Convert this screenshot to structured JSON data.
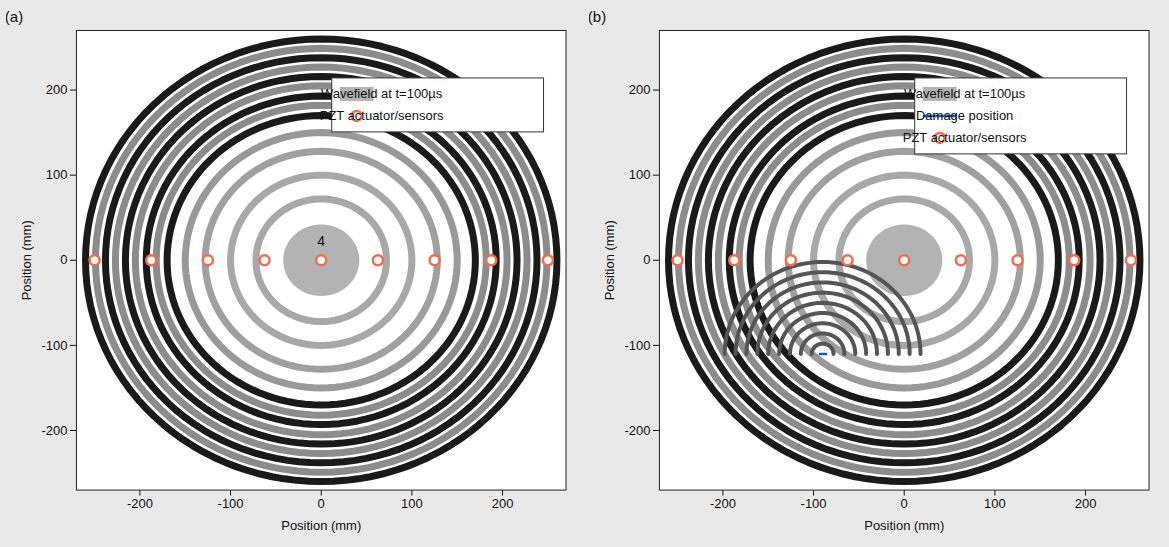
{
  "chart_data": [
    {
      "type": "scatter",
      "panel": "(a)",
      "xlabel": "Position (mm)",
      "ylabel": "Position (mm)",
      "xlim": [
        -270,
        270
      ],
      "ylim": [
        -270,
        270
      ],
      "xticks": [
        -200,
        -100,
        0,
        100,
        200
      ],
      "yticks": [
        -200,
        -100,
        0,
        100,
        200
      ],
      "legend": "top-right",
      "wavefield": {
        "name": "Wavefield at t=100µs",
        "color": "#b3b3b3",
        "center": [
          0,
          0
        ],
        "disk_radius": 42,
        "rings": [
          72,
          100,
          128,
          150,
          170,
          182,
          193,
          205,
          216,
          227,
          238,
          249,
          260
        ],
        "ring_colors": [
          "#a8a8a8",
          "#a8a8a8",
          "#a0a0a0",
          "#999999",
          "#1a1a1a",
          "#8c8c8c",
          "#1a1a1a",
          "#8c8c8c",
          "#1a1a1a",
          "#8c8c8c",
          "#1a1a1a",
          "#8c8c8c",
          "#1a1a1a"
        ]
      },
      "series": [
        {
          "name": "PZT actuator/sensors",
          "color": "#f26c4f",
          "marker": "circle",
          "x": [
            -250,
            -187.5,
            -125,
            -62.5,
            0,
            62.5,
            125,
            187.5,
            250
          ],
          "y": [
            0,
            0,
            0,
            0,
            0,
            0,
            0,
            0,
            0
          ]
        }
      ],
      "annotations": [
        {
          "text": "4",
          "x": 0,
          "y": 22
        }
      ]
    },
    {
      "type": "scatter",
      "panel": "(b)",
      "xlabel": "Position (mm)",
      "ylabel": "Position (mm)",
      "xlim": [
        -270,
        270
      ],
      "ylim": [
        -270,
        270
      ],
      "xticks": [
        -200,
        -100,
        0,
        100,
        200
      ],
      "yticks": [
        -200,
        -100,
        0,
        100,
        200
      ],
      "legend": "top-right",
      "wavefield": {
        "name": "Wavefield at t=100µs",
        "color": "#b3b3b3",
        "center": [
          0,
          0
        ],
        "disk_radius": 42,
        "rings": [
          72,
          100,
          128,
          150,
          170,
          182,
          193,
          205,
          216,
          227,
          238,
          249,
          260
        ],
        "ring_colors": [
          "#a8a8a8",
          "#a8a8a8",
          "#a0a0a0",
          "#999999",
          "#1a1a1a",
          "#8c8c8c",
          "#1a1a1a",
          "#8c8c8c",
          "#1a1a1a",
          "#8c8c8c",
          "#1a1a1a",
          "#8c8c8c",
          "#1a1a1a"
        ],
        "scattered": {
          "center": [
            -90,
            -110
          ],
          "rings": [
            12,
            24,
            36,
            48,
            60,
            72,
            84,
            96,
            108
          ],
          "arc": [
            0,
            180
          ],
          "color": "#555555"
        }
      },
      "damage": {
        "name": "Damage position",
        "color": "#2255cc",
        "x": [
          -93,
          -86
        ],
        "y": [
          -110,
          -110
        ]
      },
      "series": [
        {
          "name": "PZT actuator/sensors",
          "color": "#f26c4f",
          "marker": "circle",
          "x": [
            -250,
            -187.5,
            -125,
            -62.5,
            0,
            62.5,
            125,
            187.5,
            250
          ],
          "y": [
            0,
            0,
            0,
            0,
            0,
            0,
            0,
            0,
            0
          ]
        }
      ]
    }
  ]
}
